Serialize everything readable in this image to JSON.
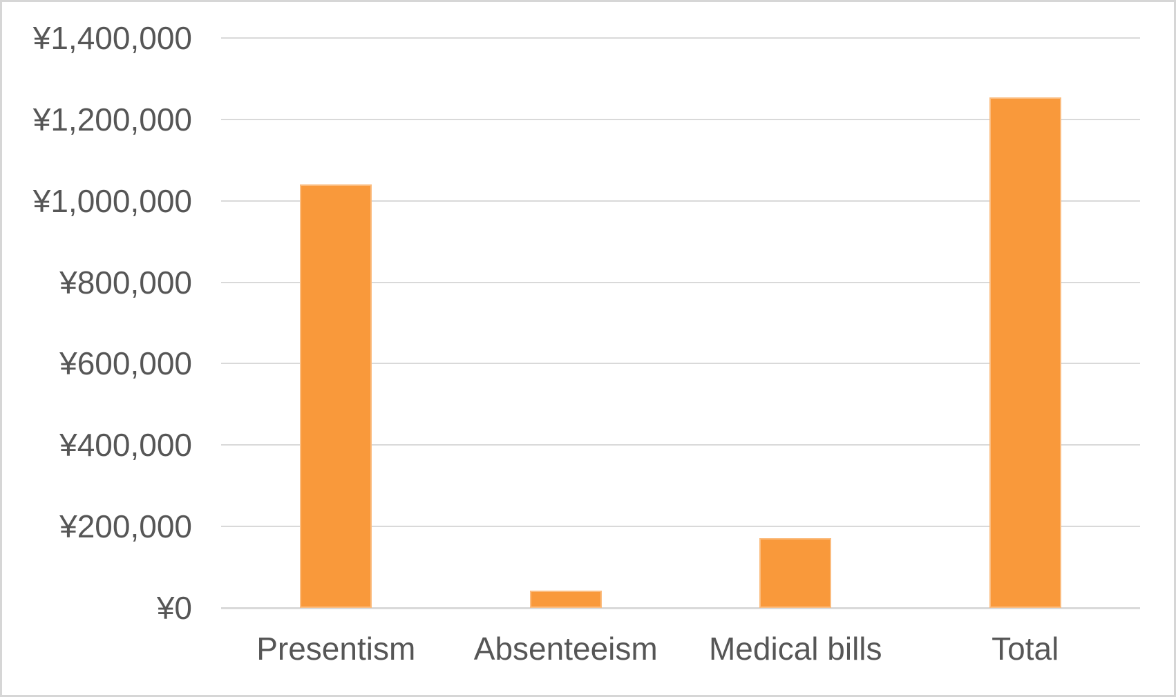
{
  "chart_data": {
    "type": "bar",
    "title": "",
    "xlabel": "",
    "ylabel": "",
    "categories": [
      "Presentism",
      "Absenteeism",
      "Medical bills",
      "Total"
    ],
    "values": [
      1040000,
      42000,
      172000,
      1254000
    ],
    "currency_prefix": "¥",
    "ylim": [
      0,
      1400000
    ],
    "ytick_step": 200000,
    "yticks": [
      {
        "value": 0,
        "label": "¥0"
      },
      {
        "value": 200000,
        "label": "¥200,000"
      },
      {
        "value": 400000,
        "label": "¥400,000"
      },
      {
        "value": 600000,
        "label": "¥600,000"
      },
      {
        "value": 800000,
        "label": "¥800,000"
      },
      {
        "value": 1000000,
        "label": "¥1,000,000"
      },
      {
        "value": 1200000,
        "label": "¥1,200,000"
      },
      {
        "value": 1400000,
        "label": "¥1,400,000"
      }
    ],
    "grid": "horizontal",
    "legend": "none",
    "colors": {
      "bar_fill": "#F9993B",
      "gridline": "#D9D9D9",
      "axis_line": "#D9D9D9",
      "tick_text": "#565656",
      "background": "#FFFFFF",
      "frame_border": "#D6D6D6"
    }
  }
}
